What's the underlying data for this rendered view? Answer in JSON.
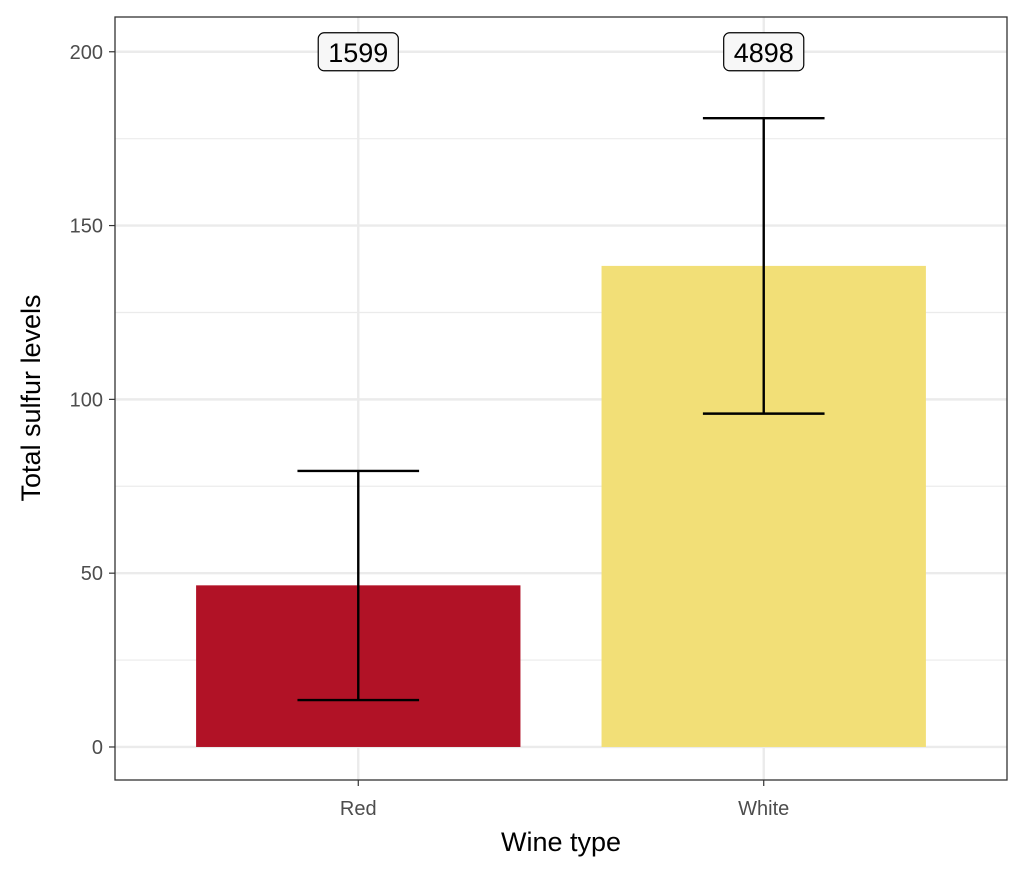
{
  "chart_data": {
    "type": "bar",
    "categories": [
      "Red",
      "White"
    ],
    "values": [
      46.5,
      138.4
    ],
    "error_bars": [
      {
        "low": 13.5,
        "high": 79.4
      },
      {
        "low": 95.9,
        "high": 180.9
      }
    ],
    "count_labels": [
      "1599",
      "4898"
    ],
    "colors": [
      "#B11226",
      "#F2DF77"
    ],
    "xlabel": "Wine type",
    "ylabel": "Total sulfur levels",
    "yticks": [
      0,
      50,
      100,
      150,
      200
    ],
    "ylim": [
      -9.5,
      210
    ],
    "count_label_y": 200,
    "grid": true
  }
}
